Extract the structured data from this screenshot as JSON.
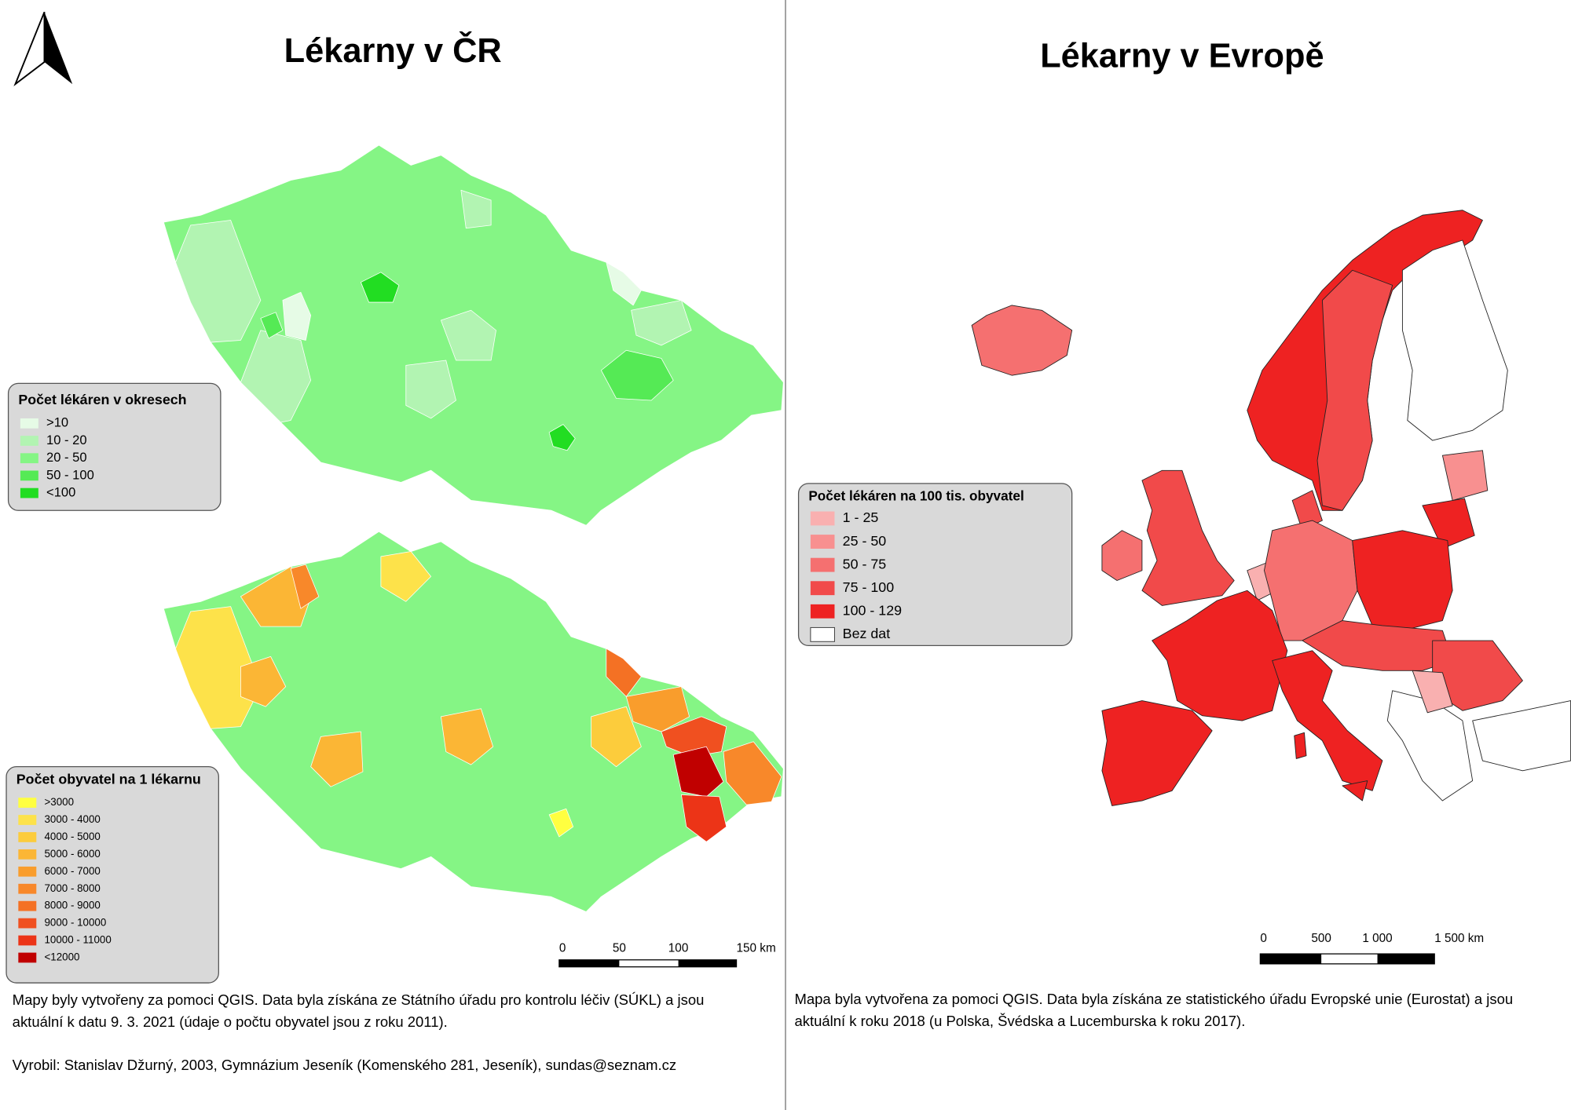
{
  "left": {
    "title": "Lékarny v ČR",
    "legend_pharmacies": {
      "title": "Počet lékáren v okresech",
      "items": [
        {
          "label": ">10",
          "color": "#e6fbe6"
        },
        {
          "label": "10 - 20",
          "color": "#b2f4b2"
        },
        {
          "label": "20 - 50",
          "color": "#85f585"
        },
        {
          "label": "50 - 100",
          "color": "#55ea55"
        },
        {
          "label": "<100",
          "color": "#22dd22"
        }
      ]
    },
    "legend_population": {
      "title": "Počet obyvatel na 1 lékarnu",
      "items": [
        {
          "label": ">3000",
          "color": "#ffff40"
        },
        {
          "label": "3000 - 4000",
          "color": "#fde24a"
        },
        {
          "label": "4000 - 5000",
          "color": "#fccc3c"
        },
        {
          "label": "5000 - 6000",
          "color": "#fbb635"
        },
        {
          "label": "6000 - 7000",
          "color": "#f99d2c"
        },
        {
          "label": "7000 - 8000",
          "color": "#f8882a"
        },
        {
          "label": "8000 - 9000",
          "color": "#f47124"
        },
        {
          "label": "9000 - 10000",
          "color": "#f05020"
        },
        {
          "label": "10000 - 11000",
          "color": "#ec3417"
        },
        {
          "label": "<12000",
          "color": "#c00000"
        }
      ]
    },
    "scale": [
      "0",
      "50",
      "100",
      "150 km"
    ],
    "note": [
      "Mapy byly vytvořeny za pomoci QGIS. Data byla získána ze Státního úřadu pro kontrolu léčiv (SÚKL) a jsou",
      "aktuální k datu 9. 3. 2021 (údaje o počtu obyvatel jsou z roku 2011)."
    ],
    "author": "Vyrobil: Stanislav Džurný, 2003, Gymnázium Jeseník (Komenského 281, Jeseník), sundas@seznam.cz"
  },
  "right": {
    "title": "Lékarny v Evropě",
    "legend": {
      "title": "Počet lékáren na 100 tis. obyvatel",
      "items": [
        {
          "label": "1 - 25",
          "color": "#f9b0b0"
        },
        {
          "label": "25 - 50",
          "color": "#f89090"
        },
        {
          "label": "50 - 75",
          "color": "#f57070"
        },
        {
          "label": "75 - 100",
          "color": "#f14a4a"
        },
        {
          "label": "100 - 129",
          "color": "#ee2222"
        },
        {
          "label": "Bez dat",
          "color": "#ffffff"
        }
      ]
    },
    "scale": [
      "0",
      "500",
      "1 000",
      "1 500 km"
    ],
    "note": [
      "Mapa byla vytvořena za pomoci QGIS. Data byla získána ze statistického úřadu Evropské unie (Eurostat) a jsou",
      "aktuální k roku 2018 (u Polska, Švédska a Lucemburska k roku 2017)."
    ]
  }
}
